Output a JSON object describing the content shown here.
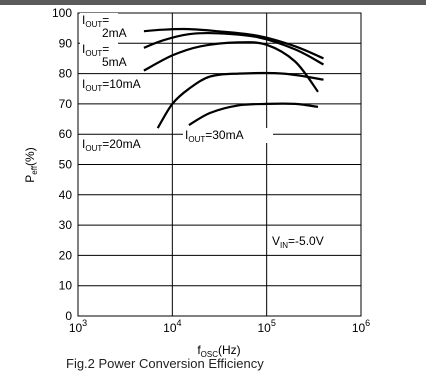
{
  "chart_data": {
    "type": "line",
    "x_scale": "log",
    "xlim": [
      1000,
      1000000
    ],
    "ylim": [
      0,
      100
    ],
    "x_ticks": [
      {
        "base": "10",
        "exp": "3"
      },
      {
        "base": "10",
        "exp": "4"
      },
      {
        "base": "10",
        "exp": "5"
      },
      {
        "base": "10",
        "exp": "6"
      }
    ],
    "y_ticks": [
      "0",
      "10",
      "20",
      "30",
      "40",
      "50",
      "60",
      "70",
      "80",
      "90",
      "100"
    ],
    "xlabel": {
      "main": "f",
      "sub": "OSC",
      "unit": "(Hz)"
    },
    "ylabel": {
      "main": "P",
      "sub": "eff",
      "unit": "(%)"
    },
    "grid": true,
    "annotation": {
      "main": "V",
      "sub": "IN",
      "rest": "=-5.0V"
    },
    "series": [
      {
        "label": {
          "line1_main": "I",
          "line1_sub": "OUT",
          "line1_rest": "=",
          "line2": "2mA"
        },
        "color": "#000000",
        "points": [
          [
            5000,
            94
          ],
          [
            8000,
            94.5
          ],
          [
            15000,
            94.7
          ],
          [
            30000,
            94
          ],
          [
            80000,
            92.5
          ],
          [
            200000,
            89
          ],
          [
            400000,
            85
          ]
        ]
      },
      {
        "label": {
          "line1_main": "I",
          "line1_sub": "OUT",
          "line1_rest": "=",
          "line2": "5mA"
        },
        "color": "#000000",
        "points": [
          [
            5000,
            88.5
          ],
          [
            8000,
            91
          ],
          [
            15000,
            93
          ],
          [
            30000,
            93.3
          ],
          [
            80000,
            92
          ],
          [
            200000,
            88
          ],
          [
            400000,
            83
          ]
        ]
      },
      {
        "label": {
          "line1_main": "I",
          "line1_sub": "OUT",
          "line1_rest": "=10mA"
        },
        "color": "#000000",
        "points": [
          [
            5000,
            81
          ],
          [
            10000,
            86
          ],
          [
            20000,
            89
          ],
          [
            50000,
            90.3
          ],
          [
            100000,
            89.5
          ],
          [
            200000,
            84
          ],
          [
            350000,
            74
          ]
        ]
      },
      {
        "label": {
          "line1_main": "I",
          "line1_sub": "OUT",
          "line1_rest": "=20mA"
        },
        "color": "#000000",
        "points": [
          [
            7000,
            62
          ],
          [
            10000,
            70
          ],
          [
            15000,
            75
          ],
          [
            25000,
            79
          ],
          [
            50000,
            80
          ],
          [
            150000,
            80
          ],
          [
            400000,
            78
          ]
        ]
      },
      {
        "label": {
          "line1_main": "I",
          "line1_sub": "OUT",
          "line1_rest": "=30mA"
        },
        "color": "#000000",
        "points": [
          [
            15000,
            63
          ],
          [
            25000,
            67
          ],
          [
            50000,
            69.5
          ],
          [
            100000,
            70
          ],
          [
            200000,
            70
          ],
          [
            350000,
            69
          ]
        ]
      }
    ]
  },
  "caption": "Fig.2  Power Conversion Efficiency"
}
